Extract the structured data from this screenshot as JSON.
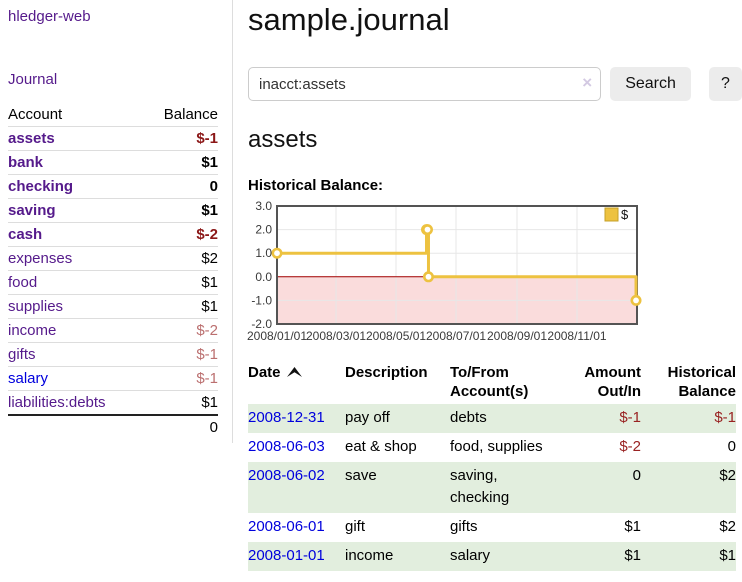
{
  "sidebar": {
    "brand": "hledger-web",
    "journal_label": "Journal",
    "accounts_table": {
      "headers": [
        "Account",
        "Balance"
      ],
      "rows": [
        {
          "name": "assets",
          "depth": 1,
          "bold": true,
          "balance": "$-1",
          "balance_class": "neg-strong"
        },
        {
          "name": "bank",
          "depth": 2,
          "bold": true,
          "balance": "$1",
          "balance_class": ""
        },
        {
          "name": "checking",
          "depth": 3,
          "bold": true,
          "balance": "0",
          "balance_class": ""
        },
        {
          "name": "saving",
          "depth": 3,
          "bold": true,
          "balance": "$1",
          "balance_class": ""
        },
        {
          "name": "cash",
          "depth": 2,
          "bold": true,
          "balance": "$-2",
          "balance_class": "neg-strong"
        },
        {
          "name": "expenses",
          "depth": 1,
          "bold": false,
          "balance": "$2",
          "balance_class": ""
        },
        {
          "name": "food",
          "depth": 2,
          "bold": false,
          "balance": "$1",
          "balance_class": ""
        },
        {
          "name": "supplies",
          "depth": 2,
          "bold": false,
          "balance": "$1",
          "balance_class": ""
        },
        {
          "name": "income",
          "depth": 1,
          "bold": false,
          "balance": "$-2",
          "balance_class": "neg-soft"
        },
        {
          "name": "gifts",
          "depth": 2,
          "bold": false,
          "balance": "$-1",
          "balance_class": "neg-soft"
        },
        {
          "name": "salary",
          "depth": 2,
          "bold": false,
          "balance": "$-1",
          "balance_class": "neg-soft",
          "link_unvisited": true
        },
        {
          "name": "liabilities:debts",
          "depth": 1,
          "bold": false,
          "balance": "$1",
          "balance_class": ""
        }
      ],
      "total": "0"
    }
  },
  "main": {
    "title": "sample.journal",
    "search": {
      "value": "inacct:assets",
      "clear_icon": "×",
      "button_label": "Search",
      "help_label": "?"
    },
    "account_heading": "assets",
    "chart_label": "Historical Balance:",
    "register_table": {
      "headers": [
        "Date",
        "Description",
        "To/From Account(s)",
        "Amount Out/In",
        "Historical Balance"
      ],
      "sort": "date-ascending",
      "rows": [
        {
          "date": "2008-12-31",
          "description": "pay off",
          "accounts": "debts",
          "amount": "$-1",
          "amount_neg": true,
          "balance": "$-1",
          "balance_neg": true
        },
        {
          "date": "2008-06-03",
          "description": "eat & shop",
          "accounts": "food, supplies",
          "amount": "$-2",
          "amount_neg": true,
          "balance": "0",
          "balance_neg": false
        },
        {
          "date": "2008-06-02",
          "description": "save",
          "accounts": "saving, checking",
          "amount": "0",
          "amount_neg": false,
          "balance": "$2",
          "balance_neg": false
        },
        {
          "date": "2008-06-01",
          "description": "gift",
          "accounts": "gifts",
          "amount": "$1",
          "amount_neg": false,
          "balance": "$2",
          "balance_neg": false
        },
        {
          "date": "2008-01-01",
          "description": "income",
          "accounts": "salary",
          "amount": "$1",
          "amount_neg": false,
          "balance": "$1",
          "balance_neg": false
        }
      ]
    }
  },
  "chart_data": {
    "type": "line",
    "step": true,
    "title": "Historical Balance:",
    "series": [
      {
        "name": "$",
        "color": "#EDC240",
        "points": [
          [
            "2008-01-01",
            1
          ],
          [
            "2008-06-01",
            2
          ],
          [
            "2008-06-02",
            2
          ],
          [
            "2008-06-03",
            0
          ],
          [
            "2008-12-31",
            -1
          ]
        ]
      }
    ],
    "x_range": [
      "2008-01-01",
      "2009-01-01"
    ],
    "ylim": [
      -2,
      3
    ],
    "y_tick_labels": [
      "3.0",
      "2.0",
      "1.0",
      "0.0",
      "-1.0",
      "-2.0"
    ],
    "x_tick_labels": [
      "2008/01/01",
      "2008/03/01",
      "2008/05/01",
      "2008/07/01",
      "2008/09/01",
      "2008/11/01"
    ],
    "legend": {
      "label": "$",
      "position": "top-right"
    },
    "grid": true,
    "colors": {
      "negative_region": "#fadcdc",
      "zero_line": "#a40000",
      "border": "#545454",
      "gridline": "#e7e7e7",
      "marker_fill": "#ffffff",
      "tick_text": "#3a3a3a"
    }
  }
}
